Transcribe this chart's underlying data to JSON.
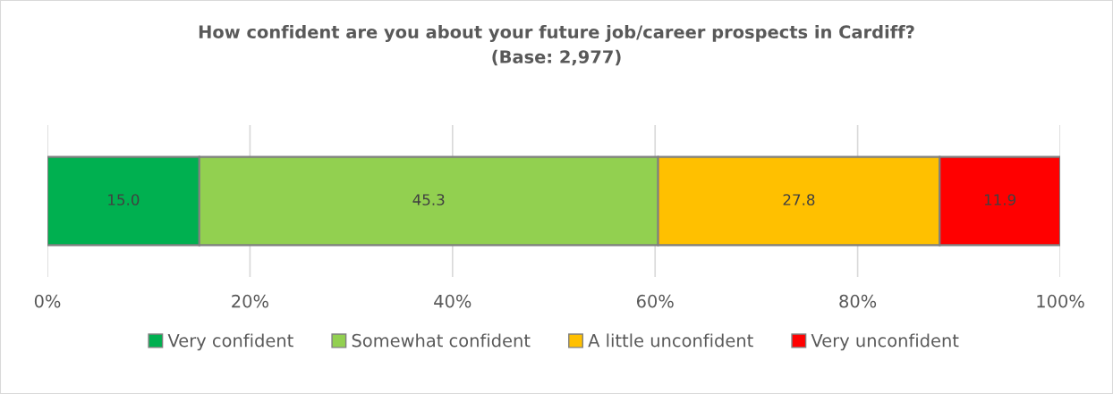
{
  "chart_data": {
    "type": "bar",
    "orientation": "horizontal",
    "stacked": true,
    "title": "How confident are you about your future job/career prospects in Cardiff?\n(Base: 2,977)",
    "categories": [
      null
    ],
    "series": [
      {
        "name": "Very confident",
        "color": "#00b050",
        "values": [
          15.0
        ],
        "value_labels": [
          "15.0"
        ]
      },
      {
        "name": "Somewhat confident",
        "color": "#92d050",
        "values": [
          45.3
        ],
        "value_labels": [
          "45.3"
        ]
      },
      {
        "name": "A little unconfident",
        "color": "#ffc000",
        "values": [
          27.8
        ],
        "value_labels": [
          "27.8"
        ]
      },
      {
        "name": "Very unconfident",
        "color": "#ff0000",
        "values": [
          11.9
        ],
        "value_labels": [
          "11.9"
        ]
      }
    ],
    "xlim": [
      0,
      100
    ],
    "xticks": [
      {
        "value": 0,
        "label": "0%"
      },
      {
        "value": 20,
        "label": "20%"
      },
      {
        "value": 40,
        "label": "40%"
      },
      {
        "value": 60,
        "label": "60%"
      },
      {
        "value": 80,
        "label": "80%"
      },
      {
        "value": 100,
        "label": "100%"
      }
    ],
    "grid": "x",
    "legend": "bottom",
    "tick_labels": "x"
  }
}
